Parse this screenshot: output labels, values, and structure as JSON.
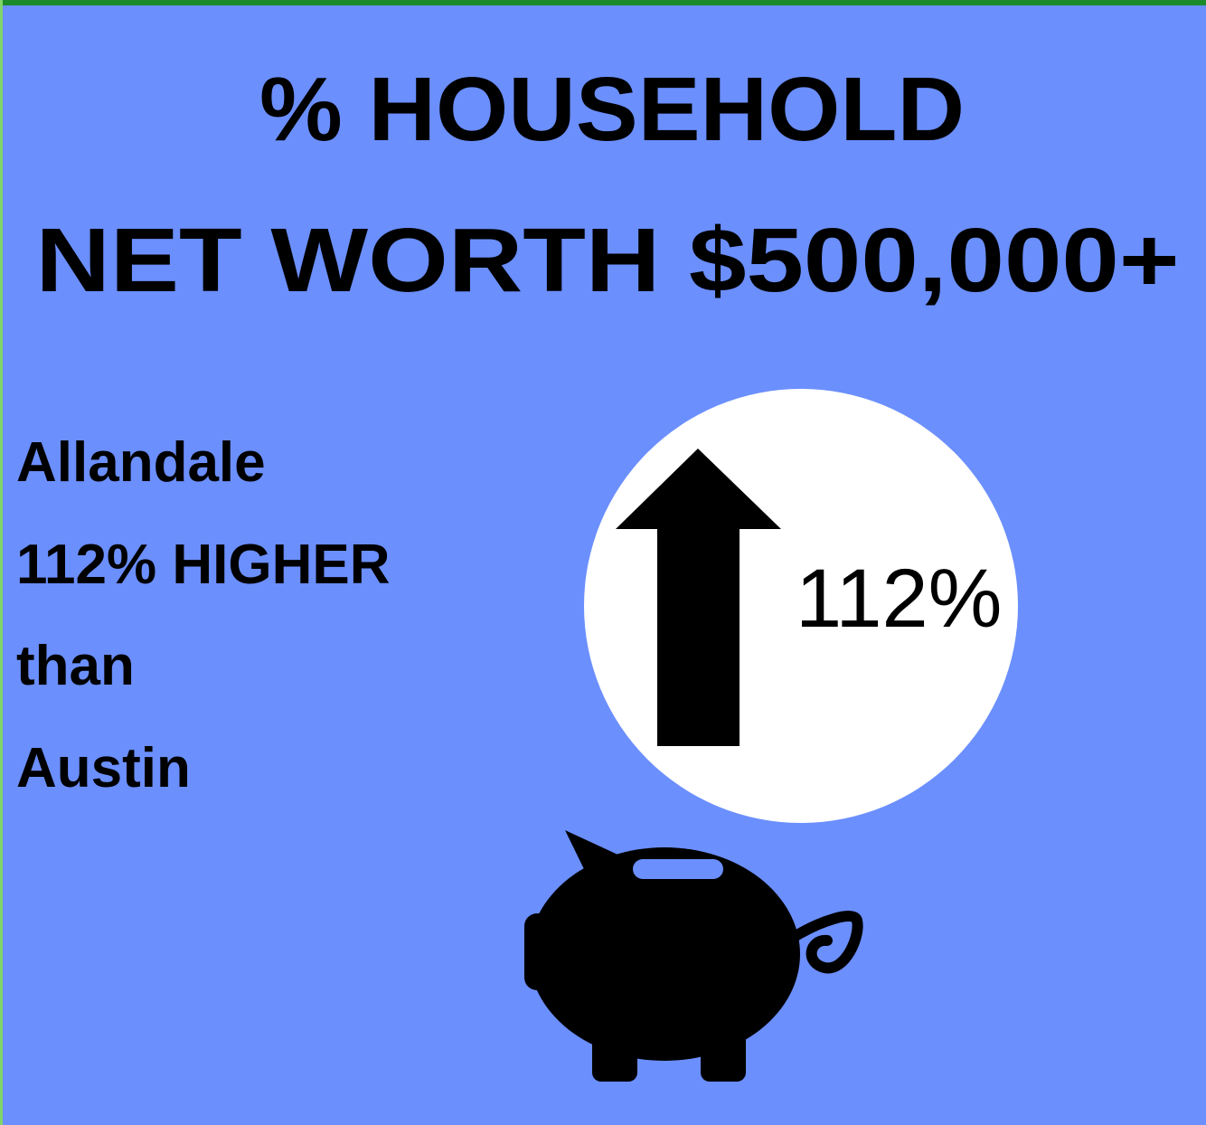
{
  "title": [
    "% HOUSEHOLD",
    "NET WORTH $500,000+"
  ],
  "description": [
    "Allandale",
    "112% HIGHER",
    "than",
    "Austin"
  ],
  "badge": "112%"
}
